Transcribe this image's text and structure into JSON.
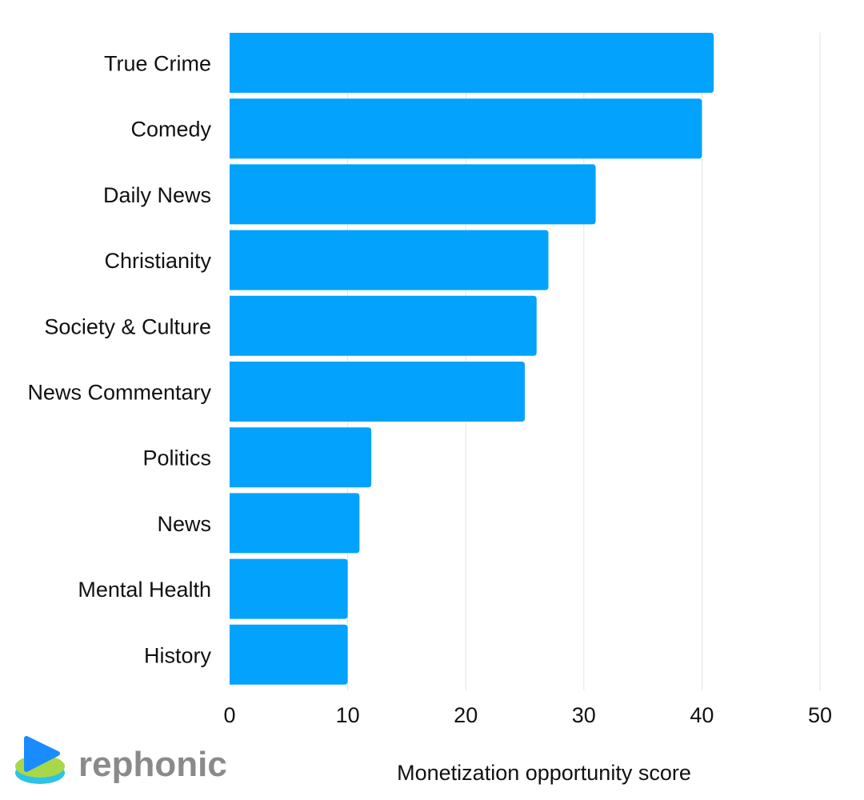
{
  "chart_data": {
    "type": "bar",
    "orientation": "horizontal",
    "categories": [
      "True Crime",
      "Comedy",
      "Daily News",
      "Christianity",
      "Society & Culture",
      "News Commentary",
      "Politics",
      "News",
      "Mental Health",
      "History"
    ],
    "values": [
      41,
      40,
      31,
      27,
      26,
      25,
      12,
      11,
      10,
      10
    ],
    "xlabel": "Monetization opportunity score",
    "xlim": [
      0,
      50
    ],
    "xticks": [
      0,
      10,
      20,
      30,
      40,
      50
    ],
    "grid": true,
    "bar_color": "#03a2fd"
  },
  "branding": {
    "name": "rephonic",
    "logo_icon": "play-disc-logo",
    "colors": {
      "blue": "#1a8cff",
      "green": "#a8d84a",
      "text": "#8a8a8a"
    }
  }
}
